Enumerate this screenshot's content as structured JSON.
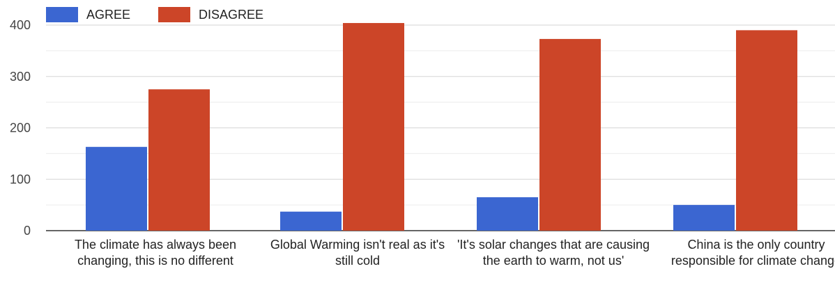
{
  "chart_data": {
    "type": "bar",
    "categories": [
      "The climate has always been changing, this is no different",
      "Global Warming isn't real as it's still cold",
      "'It's solar changes that are causing the earth to warm, not us'",
      "China is the only country responsible for climate change"
    ],
    "series": [
      {
        "name": "AGREE",
        "color": "#3b66d1",
        "values": [
          163,
          37,
          65,
          50
        ]
      },
      {
        "name": "DISAGREE",
        "color": "#cc4528",
        "values": [
          275,
          404,
          373,
          390
        ]
      }
    ],
    "ylim": [
      0,
      400
    ],
    "yticks": [
      "0",
      "100",
      "200",
      "300",
      "400"
    ],
    "grid": true,
    "legend": "top-left"
  }
}
